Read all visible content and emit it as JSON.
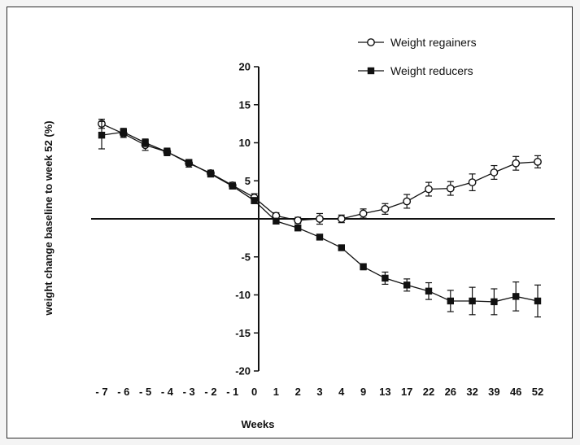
{
  "chart_data": {
    "type": "line",
    "xlabel": "Weeks",
    "ylabel": "weight change baseline to week 52 (%)",
    "categories": [
      "- 7",
      "- 6",
      "- 5",
      "- 4",
      "- 3",
      "- 2",
      "- 1",
      "0",
      "1",
      "2",
      "3",
      "4",
      "9",
      "13",
      "17",
      "22",
      "26",
      "32",
      "39",
      "46",
      "52"
    ],
    "yticks": [
      "-20",
      "-15",
      "-10",
      "-5",
      "",
      "5",
      "10",
      "15",
      "20"
    ],
    "ylim": [
      -20,
      20
    ],
    "grid": false,
    "legend_position": "top-right",
    "series": [
      {
        "name": "Weight regainers",
        "marker": "open-circle",
        "values": [
          12.5,
          11.2,
          9.7,
          8.8,
          7.3,
          6.0,
          4.4,
          2.8,
          0.4,
          -0.2,
          0.0,
          0.0,
          0.7,
          1.3,
          2.3,
          3.9,
          4.0,
          4.8,
          6.1,
          7.3,
          7.5
        ],
        "errors": [
          0.6,
          0.5,
          0.7,
          0.5,
          0.5,
          0.4,
          0.4,
          0.5,
          0.4,
          0.4,
          0.7,
          0.5,
          0.6,
          0.7,
          0.9,
          0.9,
          0.9,
          1.1,
          0.9,
          0.9,
          0.8
        ]
      },
      {
        "name": "Weight reducers",
        "marker": "filled-square",
        "values": [
          11.0,
          11.4,
          10.0,
          8.8,
          7.4,
          5.9,
          4.3,
          2.4,
          -0.3,
          -1.2,
          -2.4,
          -3.8,
          -6.3,
          -7.8,
          -8.7,
          -9.5,
          -10.8,
          -10.8,
          -10.9,
          -10.2,
          -10.8
        ],
        "errors": [
          1.8,
          0.5,
          0.5,
          0.4,
          0.4,
          0.4,
          0.3,
          0.4,
          0.3,
          0.3,
          0.3,
          0.3,
          0.4,
          0.8,
          0.8,
          1.1,
          1.4,
          1.8,
          1.7,
          1.9,
          2.1
        ]
      }
    ]
  }
}
